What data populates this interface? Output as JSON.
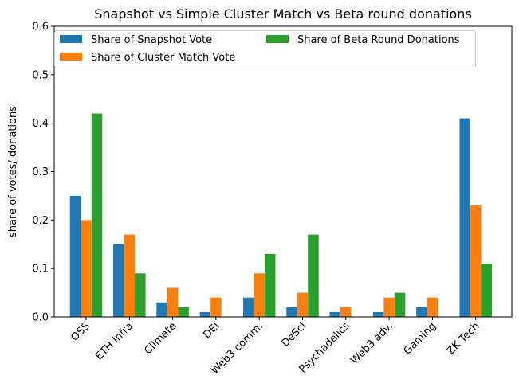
{
  "chart_data": {
    "type": "bar",
    "title": "Snapshot vs Simple Cluster Match vs Beta round donations",
    "xlabel": "",
    "ylabel": "share of votes/ donations",
    "ylim": [
      0,
      0.6
    ],
    "yticks": [
      "0.0",
      "0.1",
      "0.2",
      "0.3",
      "0.4",
      "0.5",
      "0.6"
    ],
    "categories": [
      "OSS",
      "ETH Infra",
      "Climate",
      "DEI",
      "Web3 comm.",
      "DeSci",
      "Psychadelics",
      "Web3 adv.",
      "Gaming",
      "ZK Tech"
    ],
    "series": [
      {
        "name": "Share of Snapshot Vote",
        "color": "#1f77b4",
        "values": [
          0.25,
          0.15,
          0.03,
          0.01,
          0.04,
          0.02,
          0.01,
          0.01,
          0.02,
          0.41
        ]
      },
      {
        "name": "Share of Cluster Match Vote",
        "color": "#ff7f0e",
        "values": [
          0.2,
          0.17,
          0.06,
          0.04,
          0.09,
          0.05,
          0.02,
          0.04,
          0.04,
          0.23
        ]
      },
      {
        "name": "Share of Beta Round Donations",
        "color": "#2ca02c",
        "values": [
          0.42,
          0.09,
          0.02,
          0.0,
          0.13,
          0.17,
          0.0,
          0.05,
          0.0,
          0.11
        ]
      }
    ],
    "legend": "top-left",
    "grid": false
  }
}
